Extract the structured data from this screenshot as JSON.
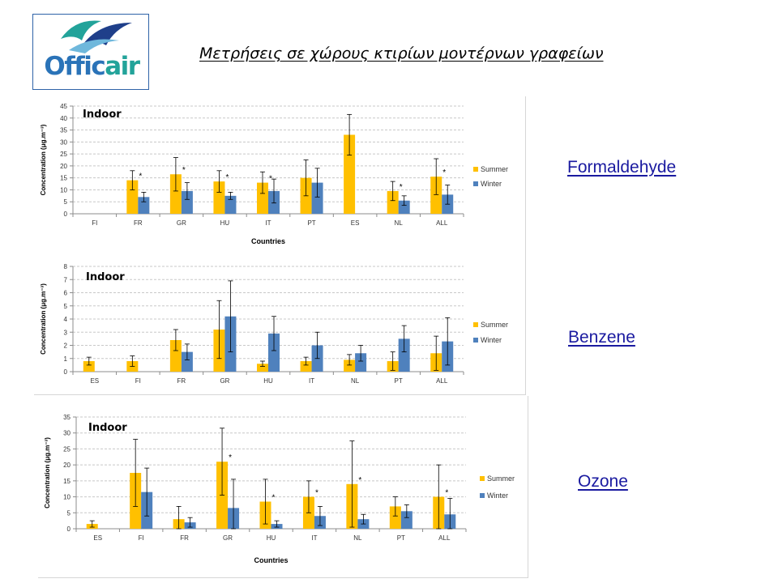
{
  "logo": {
    "text_part1": "Offic",
    "text_part2": "air",
    "colors": {
      "blue": "#2a73b8",
      "teal": "#22a39a",
      "navy": "#1f3f8a"
    }
  },
  "slide_title": "Μετρήσεις σε χώρους κτιρίων μοντέρνων γραφείων",
  "pollutants": [
    "Formaldehyde",
    "Benzene",
    "Ozone"
  ],
  "colors": {
    "summer": "#ffc000",
    "winter": "#4f81bd",
    "link": "#1a1aa0"
  },
  "chart_data": [
    {
      "type": "bar",
      "annotation": "Indoor",
      "xlabel": "Countries",
      "ylabel": "Concentration (μg.m⁻³)",
      "ylim": [
        0,
        45
      ],
      "yticks": [
        0,
        5,
        10,
        15,
        20,
        25,
        30,
        35,
        40,
        45
      ],
      "grid": true,
      "legend_position": "right",
      "categories": [
        "FI",
        "FR",
        "GR",
        "HU",
        "IT",
        "PT",
        "ES",
        "NL",
        "ALL"
      ],
      "series": [
        {
          "name": "Summer",
          "values": [
            null,
            14,
            16.5,
            13.5,
            13,
            15,
            33,
            9.5,
            15.5
          ],
          "errors": [
            null,
            4,
            7,
            4.5,
            4.5,
            7.5,
            8.5,
            4,
            7.5
          ]
        },
        {
          "name": "Winter",
          "values": [
            null,
            7,
            9.5,
            7.5,
            9.5,
            13,
            null,
            5.5,
            8
          ],
          "errors": [
            null,
            2,
            3.5,
            1.5,
            5,
            6,
            null,
            2,
            4
          ]
        }
      ],
      "significance": [
        {
          "category": "FR",
          "label": "*"
        },
        {
          "category": "GR",
          "label": "*"
        },
        {
          "category": "HU",
          "label": "*"
        },
        {
          "category": "IT",
          "label": "*"
        },
        {
          "category": "NL",
          "label": "*"
        },
        {
          "category": "ALL",
          "label": "*"
        }
      ]
    },
    {
      "type": "bar",
      "annotation": "Indoor",
      "xlabel": "",
      "ylabel": "Concentration (μg.m⁻³)",
      "ylim": [
        0,
        8
      ],
      "yticks": [
        0,
        1,
        2,
        3,
        4,
        5,
        6,
        7,
        8
      ],
      "grid": true,
      "legend_position": "right",
      "categories": [
        "ES",
        "FI",
        "FR",
        "GR",
        "HU",
        "IT",
        "NL",
        "PT",
        "ALL"
      ],
      "series": [
        {
          "name": "Summer",
          "values": [
            0.8,
            0.8,
            2.4,
            3.2,
            0.6,
            0.8,
            0.9,
            0.8,
            1.4
          ],
          "errors": [
            0.3,
            0.4,
            0.8,
            2.2,
            0.2,
            0.3,
            0.4,
            0.7,
            1.3
          ]
        },
        {
          "name": "Winter",
          "values": [
            null,
            null,
            1.5,
            4.2,
            2.9,
            2.0,
            1.4,
            2.5,
            2.3
          ],
          "errors": [
            null,
            null,
            0.6,
            2.7,
            1.3,
            1.0,
            0.6,
            1.0,
            1.8
          ]
        }
      ],
      "significance": []
    },
    {
      "type": "bar",
      "annotation": "Indoor",
      "xlabel": "Countries",
      "ylabel": "Concentration (μg.m⁻³)",
      "ylim": [
        0,
        35
      ],
      "yticks": [
        0,
        5,
        10,
        15,
        20,
        25,
        30,
        35
      ],
      "grid": true,
      "legend_position": "right",
      "categories": [
        "ES",
        "FI",
        "FR",
        "GR",
        "HU",
        "IT",
        "NL",
        "PT",
        "ALL"
      ],
      "series": [
        {
          "name": "Summer",
          "values": [
            1.5,
            17.5,
            3,
            21,
            8.5,
            10,
            14,
            7,
            10
          ],
          "errors": [
            1,
            10.5,
            4,
            10.5,
            7,
            5,
            13.5,
            3,
            10
          ]
        },
        {
          "name": "Winter",
          "values": [
            null,
            11.5,
            2,
            6.5,
            1.5,
            4,
            3,
            5.5,
            4.5
          ],
          "errors": [
            null,
            7.5,
            1.5,
            9,
            1,
            3,
            1.5,
            2,
            5
          ]
        }
      ],
      "significance": [
        {
          "category": "GR",
          "label": "*"
        },
        {
          "category": "HU",
          "label": "*"
        },
        {
          "category": "IT",
          "label": "*"
        },
        {
          "category": "NL",
          "label": "*"
        },
        {
          "category": "ALL",
          "label": "*"
        }
      ]
    }
  ]
}
